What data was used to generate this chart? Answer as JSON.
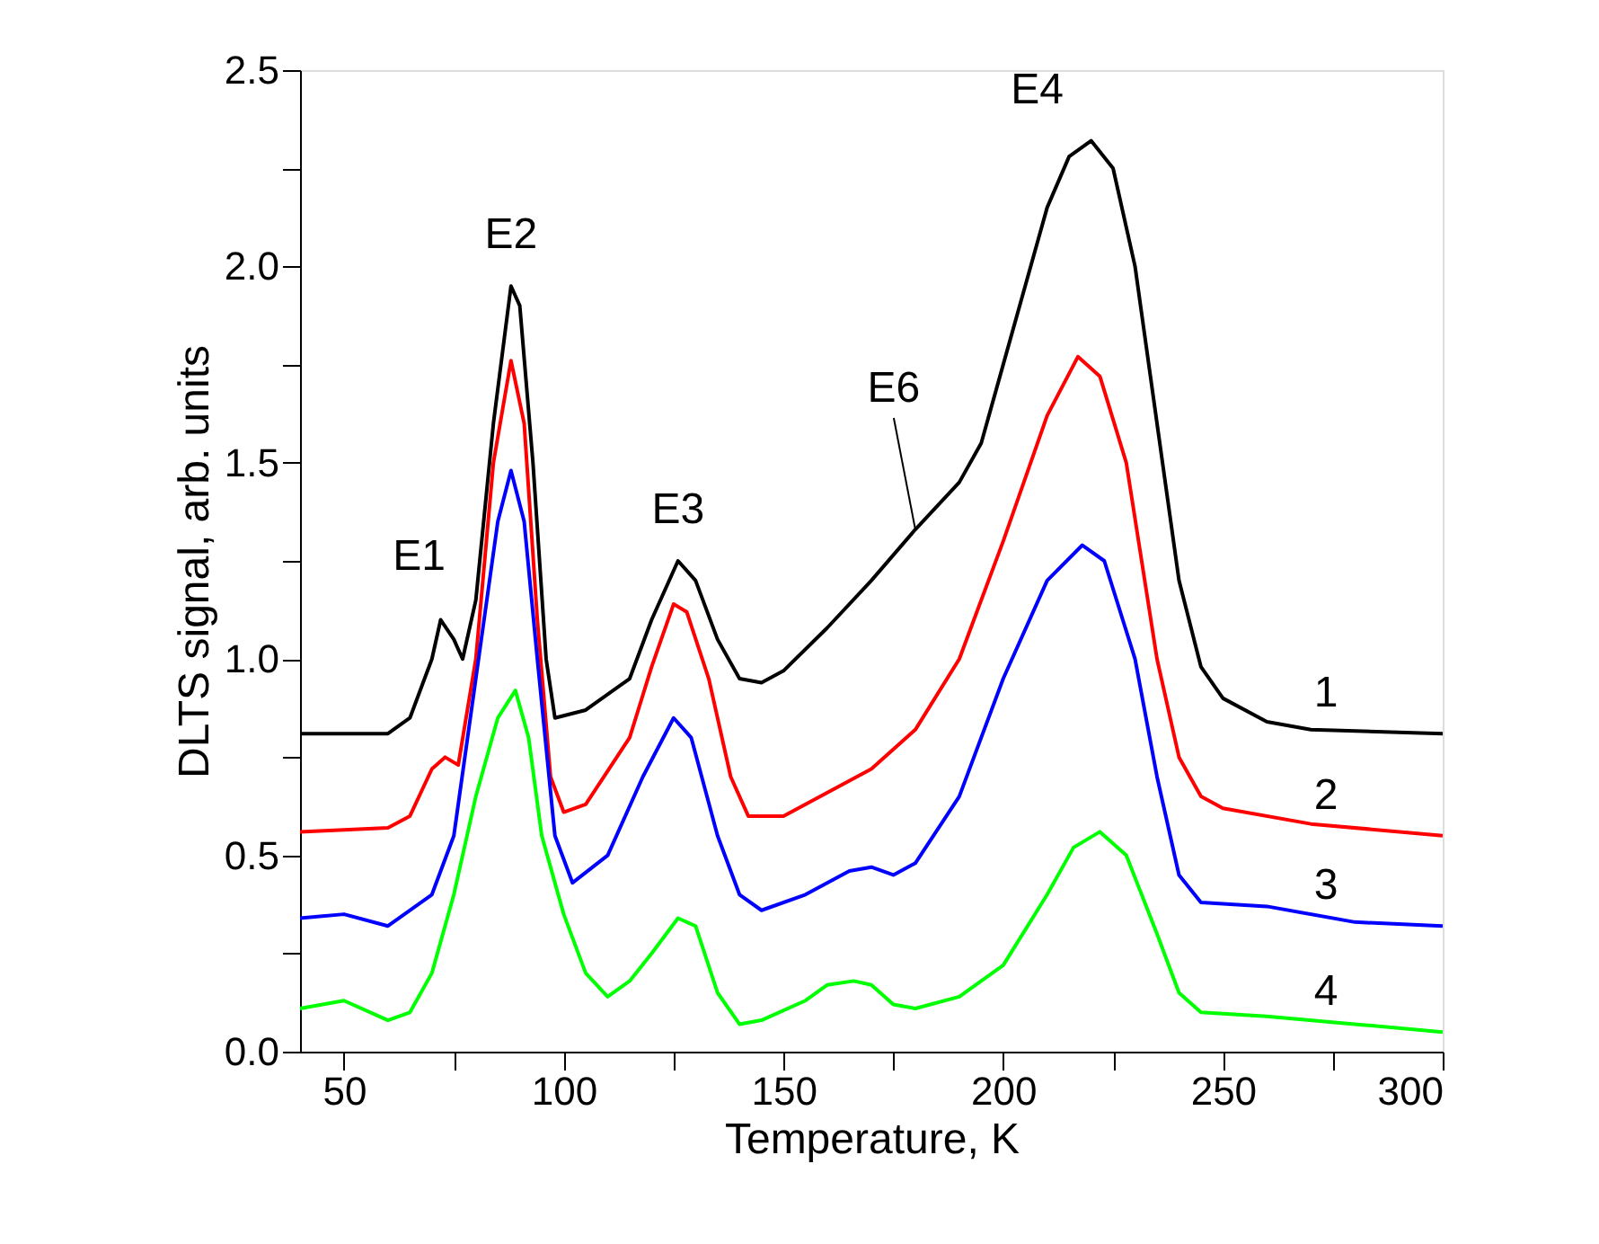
{
  "chart_data": {
    "type": "line",
    "xlabel": "Temperature, K",
    "ylabel": "DLTS signal, arb. units",
    "xlim": [
      40,
      300
    ],
    "ylim": [
      0,
      2.5
    ],
    "xticks": [
      50,
      {
        "value": 75,
        "label": null
      },
      100,
      {
        "value": 125,
        "label": null
      },
      150,
      {
        "value": 175,
        "label": null
      },
      200,
      {
        "value": 225,
        "label": null
      },
      250,
      {
        "value": 275,
        "label": null
      },
      300
    ],
    "yticks": [
      "0.0",
      {
        "value": 0.25,
        "label": null
      },
      {
        "value": 0.5,
        "label": "0.5"
      },
      {
        "value": 0.75,
        "label": null
      },
      {
        "value": 1,
        "label": "1.0"
      },
      {
        "value": 1.25,
        "label": null
      },
      {
        "value": 1.5,
        "label": "1.5"
      },
      {
        "value": 1.75,
        "label": null
      },
      {
        "value": 2,
        "label": "2.0"
      },
      {
        "value": 2.25,
        "label": null
      },
      {
        "value": 2.5,
        "label": "2.5"
      }
    ],
    "grid": false,
    "legend": false,
    "marker": "none",
    "line_style": "solid",
    "series": [
      {
        "name": "1",
        "color": "#000000",
        "x": [
          40,
          60,
          65,
          70,
          72,
          75,
          77,
          80,
          84,
          88,
          90,
          93,
          96,
          98,
          105,
          115,
          120,
          126,
          130,
          135,
          140,
          145,
          150,
          160,
          170,
          180,
          190,
          195,
          200,
          205,
          210,
          215,
          220,
          225,
          230,
          235,
          240,
          245,
          250,
          260,
          270,
          300
        ],
        "values": [
          0.81,
          0.81,
          0.85,
          1.0,
          1.1,
          1.05,
          1.0,
          1.15,
          1.6,
          1.95,
          1.9,
          1.5,
          1.0,
          0.85,
          0.87,
          0.95,
          1.1,
          1.25,
          1.2,
          1.05,
          0.95,
          0.94,
          0.97,
          1.08,
          1.2,
          1.33,
          1.45,
          1.55,
          1.75,
          1.95,
          2.15,
          2.28,
          2.32,
          2.25,
          2.0,
          1.6,
          1.2,
          0.98,
          0.9,
          0.84,
          0.82,
          0.81
        ]
      },
      {
        "name": "2",
        "color": "#ff0000",
        "x": [
          40,
          60,
          65,
          70,
          73,
          76,
          80,
          84,
          88,
          91,
          94,
          97,
          100,
          105,
          115,
          120,
          125,
          128,
          133,
          138,
          142,
          150,
          160,
          170,
          180,
          190,
          200,
          210,
          217,
          222,
          228,
          235,
          240,
          245,
          250,
          270,
          300
        ],
        "values": [
          0.56,
          0.57,
          0.6,
          0.72,
          0.75,
          0.73,
          1.0,
          1.5,
          1.76,
          1.6,
          1.1,
          0.7,
          0.61,
          0.63,
          0.8,
          0.98,
          1.14,
          1.12,
          0.95,
          0.7,
          0.6,
          0.6,
          0.66,
          0.72,
          0.82,
          1.0,
          1.3,
          1.62,
          1.77,
          1.72,
          1.5,
          1.0,
          0.75,
          0.65,
          0.62,
          0.58,
          0.55
        ]
      },
      {
        "name": "3",
        "color": "#0000ff",
        "x": [
          40,
          50,
          60,
          70,
          75,
          80,
          85,
          88,
          91,
          94,
          98,
          102,
          110,
          118,
          125,
          129,
          135,
          140,
          145,
          155,
          165,
          170,
          175,
          180,
          190,
          200,
          210,
          218,
          223,
          230,
          235,
          240,
          245,
          260,
          280,
          300
        ],
        "values": [
          0.34,
          0.35,
          0.32,
          0.4,
          0.55,
          0.95,
          1.35,
          1.48,
          1.35,
          1.0,
          0.55,
          0.43,
          0.5,
          0.7,
          0.85,
          0.8,
          0.55,
          0.4,
          0.36,
          0.4,
          0.46,
          0.47,
          0.45,
          0.48,
          0.65,
          0.95,
          1.2,
          1.29,
          1.25,
          1.0,
          0.7,
          0.45,
          0.38,
          0.37,
          0.33,
          0.32
        ]
      },
      {
        "name": "4",
        "color": "#00ff00",
        "x": [
          40,
          50,
          60,
          65,
          70,
          75,
          80,
          85,
          89,
          92,
          95,
          100,
          105,
          110,
          115,
          120,
          126,
          130,
          135,
          140,
          145,
          155,
          160,
          166,
          170,
          175,
          180,
          190,
          200,
          210,
          216,
          222,
          228,
          235,
          240,
          245,
          260,
          280,
          300
        ],
        "values": [
          0.11,
          0.13,
          0.08,
          0.1,
          0.2,
          0.4,
          0.65,
          0.85,
          0.92,
          0.8,
          0.55,
          0.35,
          0.2,
          0.14,
          0.18,
          0.25,
          0.34,
          0.32,
          0.15,
          0.07,
          0.08,
          0.13,
          0.17,
          0.18,
          0.17,
          0.12,
          0.11,
          0.14,
          0.22,
          0.4,
          0.52,
          0.56,
          0.5,
          0.3,
          0.15,
          0.1,
          0.09,
          0.07,
          0.05
        ]
      }
    ],
    "annotations": [
      {
        "text": "E1",
        "x": 72,
        "y": 1.1
      },
      {
        "text": "E2",
        "x": 88,
        "y": 1.95
      },
      {
        "text": "E3",
        "x": 126,
        "y": 1.25
      },
      {
        "text": "E4",
        "x": 220,
        "y": 2.32
      },
      {
        "text": "E6",
        "x": 180,
        "y": 1.33
      }
    ]
  }
}
